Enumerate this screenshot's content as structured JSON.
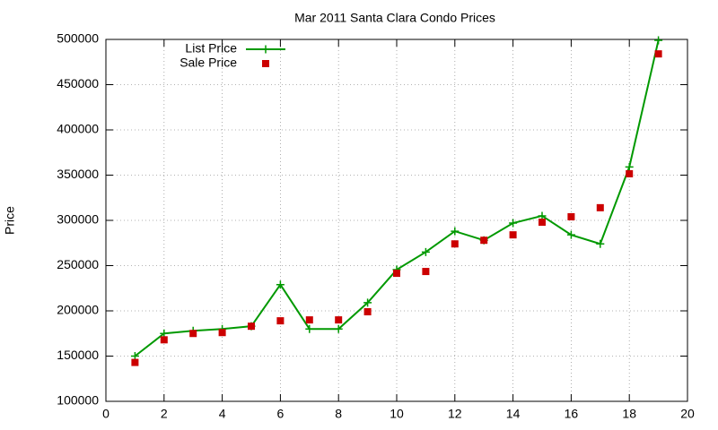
{
  "chart_data": {
    "type": "line",
    "title": "Mar 2011 Santa Clara Condo Prices",
    "y_label": "Price",
    "x": [
      1,
      2,
      3,
      4,
      5,
      6,
      7,
      8,
      9,
      10,
      11,
      12,
      13,
      14,
      15,
      16,
      17,
      18,
      19
    ],
    "series": [
      {
        "name": "List Price",
        "color": "#009900",
        "style": "linespoints",
        "values": [
          150000,
          175000,
          178000,
          180000,
          183000,
          229000,
          180000,
          180000,
          209000,
          245500,
          265000,
          288000,
          278000,
          297000,
          305000,
          284000,
          274000,
          359000,
          499000
        ]
      },
      {
        "name": "Sale Price",
        "color": "#cc0000",
        "style": "points",
        "values": [
          143000,
          168000,
          175000,
          176000,
          183000,
          189000,
          190000,
          190000,
          199000,
          241500,
          243500,
          274000,
          278000,
          284000,
          298000,
          304000,
          314000,
          351500,
          484000
        ]
      }
    ],
    "xlim": [
      0,
      20
    ],
    "xticks": [
      0,
      2,
      4,
      6,
      8,
      10,
      12,
      14,
      16,
      18,
      20
    ],
    "ylim": [
      100000,
      500000
    ],
    "yticks": [
      100000,
      150000,
      200000,
      250000,
      300000,
      350000,
      400000,
      450000,
      500000
    ],
    "grid": true,
    "legend": "top-left"
  }
}
